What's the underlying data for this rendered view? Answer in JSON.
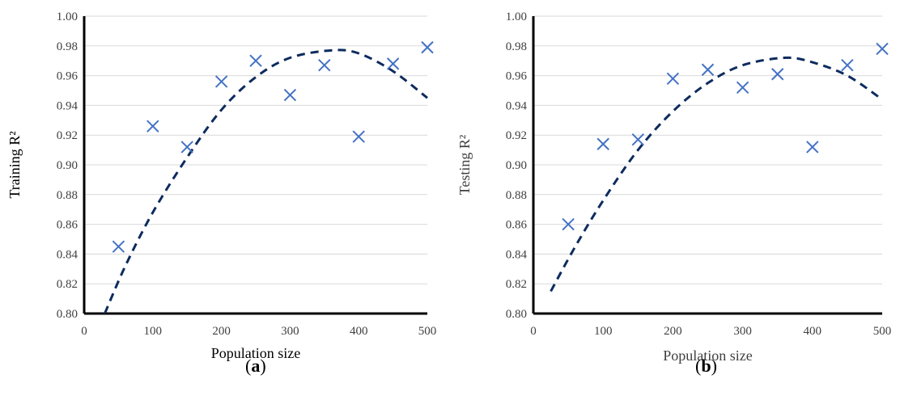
{
  "chart_data": [
    {
      "type": "scatter",
      "panel_label": "a",
      "xlabel": "Population size",
      "ylabel": "Training R²",
      "xlim": [
        0,
        500
      ],
      "ylim": [
        0.8,
        1.0
      ],
      "xticks": [
        "0",
        "100",
        "200",
        "300",
        "400",
        "500"
      ],
      "yticks": [
        "0.80",
        "0.82",
        "0.84",
        "0.86",
        "0.88",
        "0.90",
        "0.92",
        "0.94",
        "0.96",
        "0.98",
        "1.00"
      ],
      "grid": "horizontal",
      "points": [
        {
          "x": 50,
          "y": 0.845
        },
        {
          "x": 100,
          "y": 0.926
        },
        {
          "x": 150,
          "y": 0.912
        },
        {
          "x": 200,
          "y": 0.956
        },
        {
          "x": 250,
          "y": 0.97
        },
        {
          "x": 300,
          "y": 0.947
        },
        {
          "x": 350,
          "y": 0.967
        },
        {
          "x": 400,
          "y": 0.919
        },
        {
          "x": 450,
          "y": 0.968
        },
        {
          "x": 500,
          "y": 0.979
        }
      ],
      "trendline": {
        "type": "polynomial",
        "x_range": [
          30,
          500
        ],
        "points": [
          [
            30,
            0.8
          ],
          [
            60,
            0.832
          ],
          [
            100,
            0.868
          ],
          [
            150,
            0.905
          ],
          [
            200,
            0.937
          ],
          [
            250,
            0.959
          ],
          [
            300,
            0.972
          ],
          [
            360,
            0.977
          ],
          [
            400,
            0.975
          ],
          [
            450,
            0.963
          ],
          [
            500,
            0.945
          ]
        ]
      },
      "marker_color": "#4472c4",
      "trend_color": "#0d2b5e"
    },
    {
      "type": "scatter",
      "panel_label": "b",
      "xlabel": "Population size",
      "ylabel": "Testing R²",
      "xlim": [
        0,
        500
      ],
      "ylim": [
        0.8,
        1.0
      ],
      "xticks": [
        "0",
        "100",
        "200",
        "300",
        "400",
        "500"
      ],
      "yticks": [
        "0.80",
        "0.82",
        "0.84",
        "0.86",
        "0.88",
        "0.90",
        "0.92",
        "0.94",
        "0.96",
        "0.98",
        "1.00"
      ],
      "grid": "horizontal",
      "points": [
        {
          "x": 50,
          "y": 0.86
        },
        {
          "x": 100,
          "y": 0.914
        },
        {
          "x": 150,
          "y": 0.917
        },
        {
          "x": 200,
          "y": 0.958
        },
        {
          "x": 250,
          "y": 0.964
        },
        {
          "x": 300,
          "y": 0.952
        },
        {
          "x": 350,
          "y": 0.961
        },
        {
          "x": 400,
          "y": 0.912
        },
        {
          "x": 450,
          "y": 0.967
        },
        {
          "x": 500,
          "y": 0.978
        }
      ],
      "trendline": {
        "type": "polynomial",
        "x_range": [
          25,
          500
        ],
        "points": [
          [
            25,
            0.815
          ],
          [
            60,
            0.845
          ],
          [
            100,
            0.876
          ],
          [
            150,
            0.91
          ],
          [
            200,
            0.936
          ],
          [
            250,
            0.955
          ],
          [
            300,
            0.967
          ],
          [
            360,
            0.972
          ],
          [
            400,
            0.969
          ],
          [
            450,
            0.96
          ],
          [
            500,
            0.944
          ]
        ]
      },
      "marker_color": "#4472c4",
      "trend_color": "#0d2b5e"
    }
  ]
}
